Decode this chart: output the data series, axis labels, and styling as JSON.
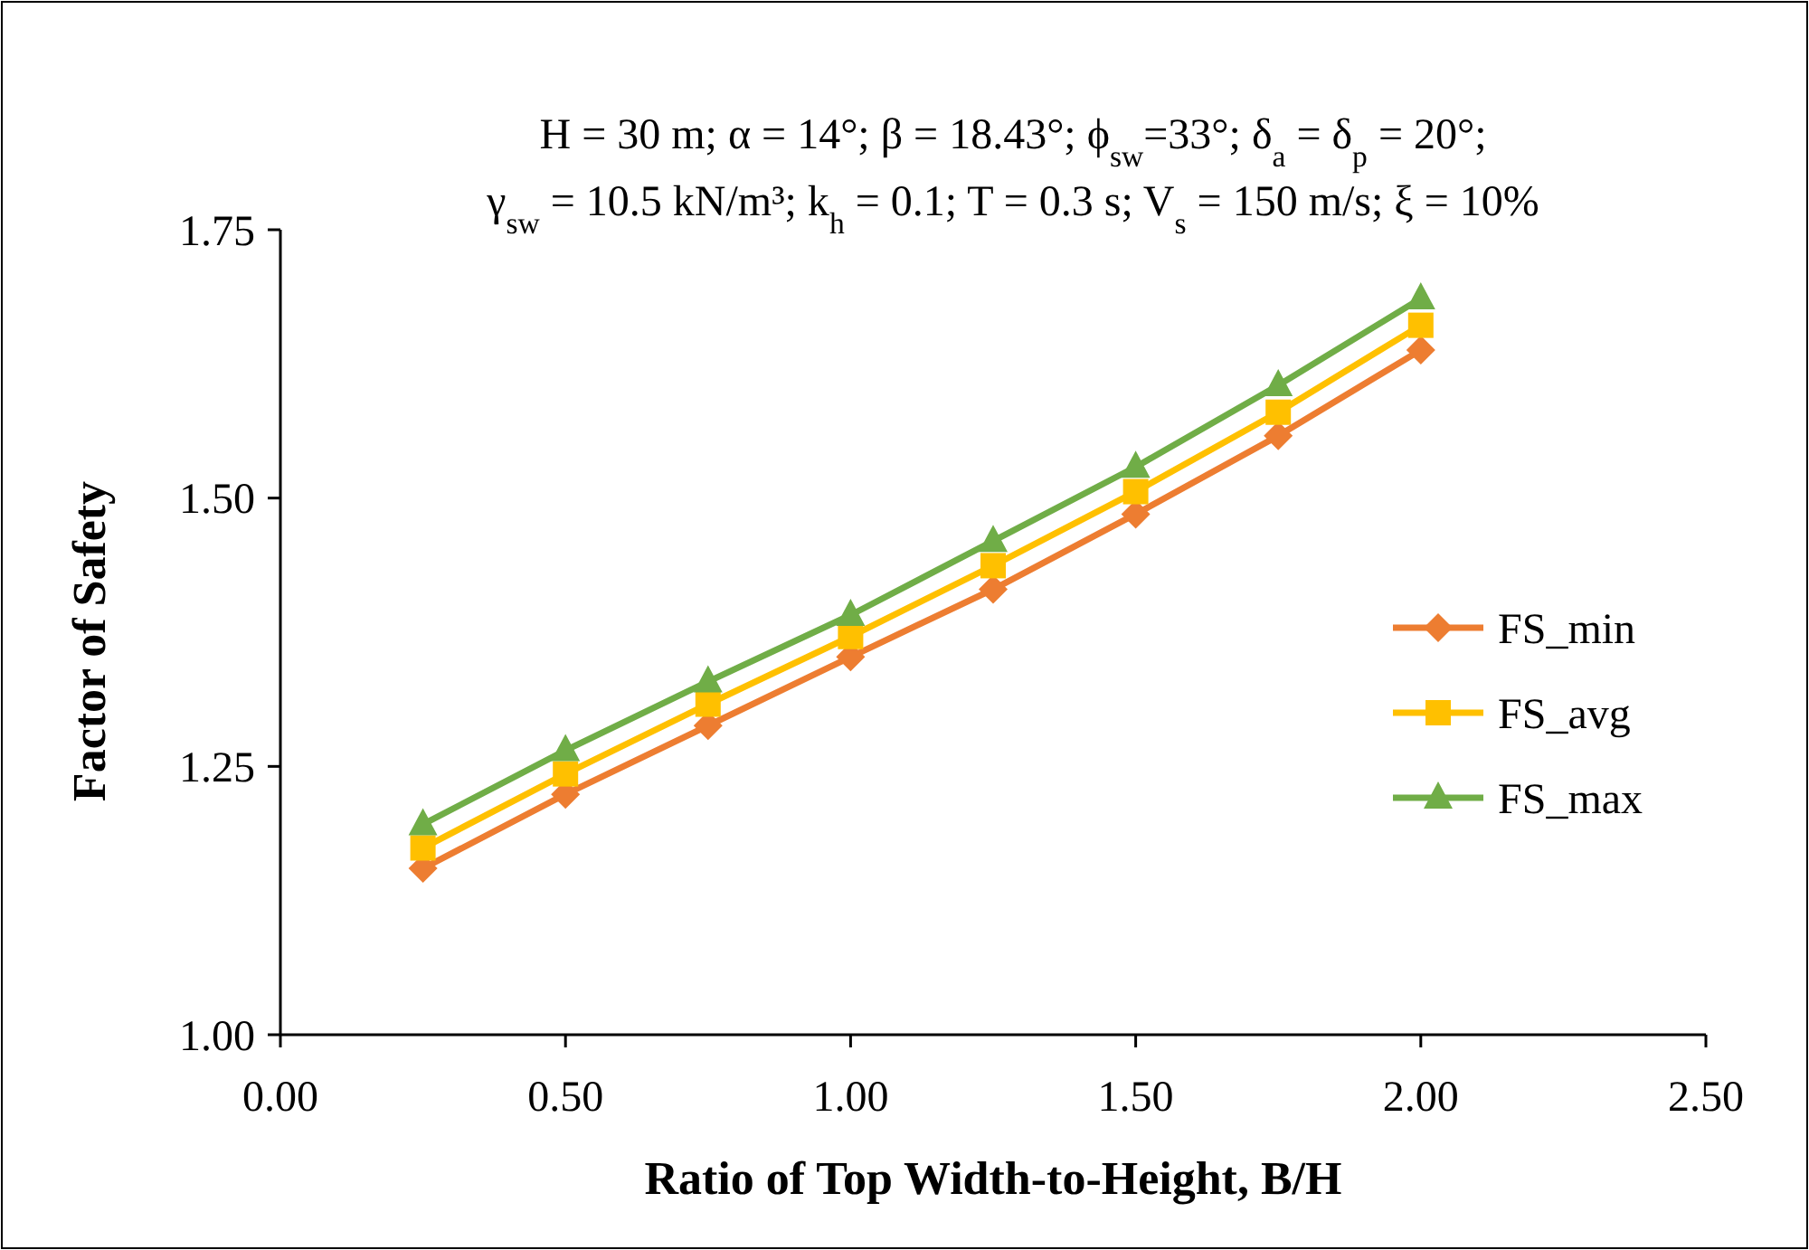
{
  "chart_data": {
    "type": "line",
    "title": "H = 30 m; α = 14°; β = 18.43°; ϕ$_{sw}$=33°; δ$_{a}$ = δ$_{p}$ = 20°;",
    "subtitle": "γ$_{sw}$ = 10.5 kN/m³; k$_{h}$ = 0.1; T = 0.3 s; V$_{s}$ = 150 m/s; ξ = 10%",
    "xlabel": "Ratio of Top Width-to-Height, B/H",
    "ylabel": "Factor of Safety",
    "x": [
      0.25,
      0.5,
      0.75,
      1.0,
      1.25,
      1.5,
      1.75,
      2.0
    ],
    "series": [
      {
        "name": "FS_min",
        "color": "#ed7d31",
        "marker": "diamond",
        "values": [
          1.155,
          1.224,
          1.288,
          1.352,
          1.415,
          1.485,
          1.558,
          1.638
        ]
      },
      {
        "name": "FS_avg",
        "color": "#ffc000",
        "marker": "square",
        "values": [
          1.174,
          1.243,
          1.308,
          1.371,
          1.437,
          1.506,
          1.58,
          1.661
        ]
      },
      {
        "name": "FS_max",
        "color": "#70ad47",
        "marker": "triangle",
        "values": [
          1.196,
          1.265,
          1.329,
          1.391,
          1.46,
          1.529,
          1.605,
          1.686
        ]
      }
    ],
    "xlim": [
      0,
      2.5
    ],
    "xticks": [
      {
        "value": 0,
        "label": "0.00"
      },
      {
        "value": 0.5,
        "label": "0.50"
      },
      {
        "value": 1,
        "label": "1.00"
      },
      {
        "value": 1.5,
        "label": "1.50"
      },
      {
        "value": 2,
        "label": "2.00"
      },
      {
        "value": 2.5,
        "label": "2.50"
      }
    ],
    "ylim": [
      1,
      1.75
    ],
    "yticks": [
      {
        "value": 1,
        "label": "1.00"
      },
      {
        "value": 1.25,
        "label": "1.25"
      },
      {
        "value": 1.5,
        "label": "1.50"
      },
      {
        "value": 1.75,
        "label": "1.75"
      }
    ],
    "grid": false,
    "legend": "right",
    "line_style": "solid"
  }
}
